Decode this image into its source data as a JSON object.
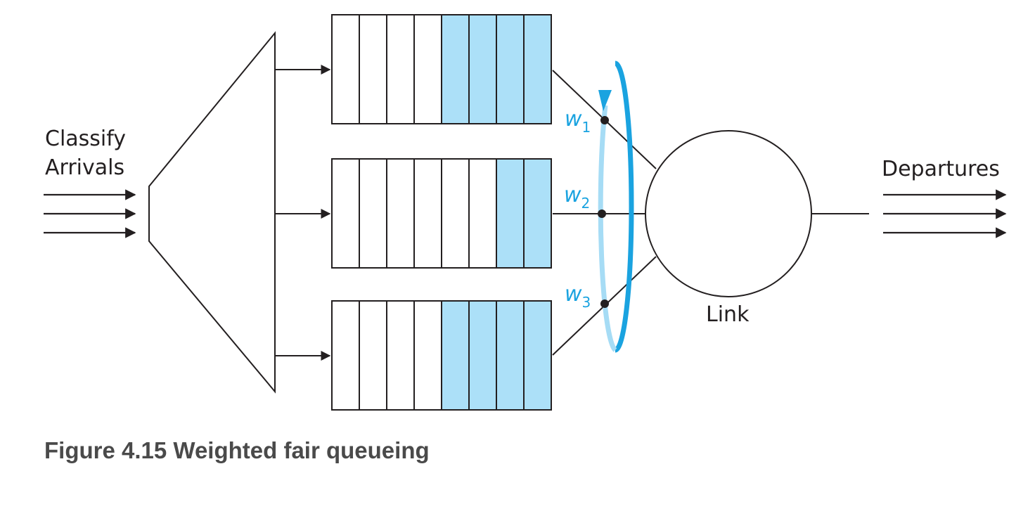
{
  "labels": {
    "classify": "Classify",
    "arrivals": "Arrivals",
    "departures": "Departures",
    "link": "Link"
  },
  "weights": [
    {
      "symbol": "w",
      "sub": "1"
    },
    {
      "symbol": "w",
      "sub": "2"
    },
    {
      "symbol": "w",
      "sub": "3"
    }
  ],
  "queues": [
    {
      "name": "queue-1",
      "cells": 8,
      "filled": 4
    },
    {
      "name": "queue-2",
      "cells": 8,
      "filled": 2
    },
    {
      "name": "queue-3",
      "cells": 8,
      "filled": 4
    }
  ],
  "caption": "Figure 4.15 Weighted fair queueing",
  "colors": {
    "stroke": "#231f20",
    "filled_cell": "#ace0f8",
    "accent": "#1aa3e0"
  }
}
